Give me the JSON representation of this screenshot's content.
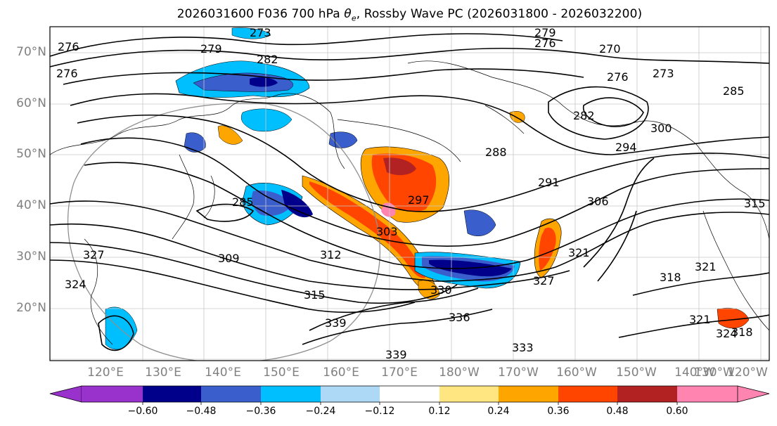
{
  "title": {
    "text_prefix": "2026031600 F036 700 hPa ",
    "theta": "θ",
    "theta_sub": "e",
    "text_suffix": ", Rossby Wave PC (2026031800 - 2026032200)"
  },
  "lat_labels": [
    "70°N",
    "60°N",
    "50°N",
    "40°N",
    "30°N",
    "20°N"
  ],
  "lon_labels": [
    "120°E",
    "130°E",
    "140°E",
    "150°E",
    "160°E",
    "170°E",
    "180°W",
    "170°W",
    "160°W",
    "150°W",
    "140°W",
    "130°W",
    "120°W"
  ],
  "contour_labels": [
    "273",
    "279",
    "276",
    "279",
    "282",
    "276",
    "270",
    "276",
    "273",
    "285",
    "276",
    "282",
    "288",
    "294",
    "300",
    "291",
    "306",
    "297",
    "285",
    "303",
    "309",
    "312",
    "315",
    "330",
    "336",
    "339",
    "339",
    "333",
    "327",
    "321",
    "318",
    "315",
    "324",
    "327",
    "321",
    "324",
    "318",
    "321"
  ],
  "colorbar": {
    "labels": [
      "−0.60",
      "−0.48",
      "−0.36",
      "−0.24",
      "−0.12",
      "0.12",
      "0.24",
      "0.36",
      "0.48",
      "0.60"
    ],
    "colors": [
      "#9932cc",
      "#00008b",
      "#3a5fcd",
      "#00bfff",
      "#add8f6",
      "#ffffff",
      "#ffe680",
      "#ffa500",
      "#ff4500",
      "#b22222",
      "#ff85b0"
    ]
  }
}
